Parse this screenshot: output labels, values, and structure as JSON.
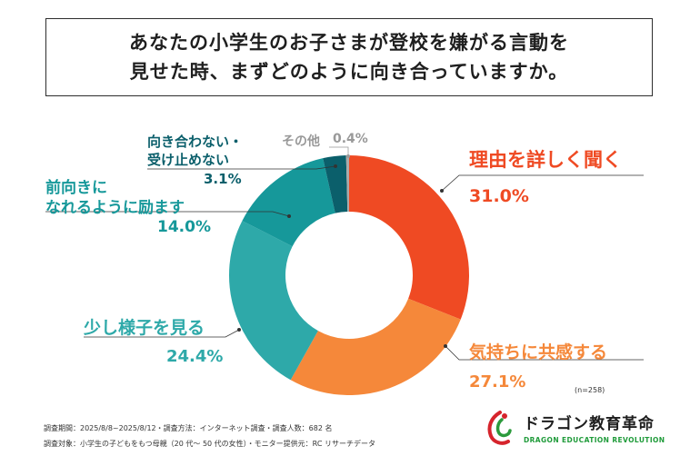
{
  "title": {
    "line1": "あなたの小学生のお子さまが登校を嫌がる言動を",
    "line2": "見せた時、まずどのように向き合っていますか。"
  },
  "chart_data": {
    "type": "pie",
    "donut": true,
    "slices": [
      {
        "label": "理由を詳しく聞く",
        "value": 31.0,
        "value_label": "31.0%",
        "color": "#ef4a23"
      },
      {
        "label": "気持ちに共感する",
        "value": 27.1,
        "value_label": "27.1%",
        "color": "#f5883a"
      },
      {
        "label": "少し様子を見る",
        "value": 24.4,
        "value_label": "24.4%",
        "color": "#2ea9a9"
      },
      {
        "label": "前向きに なれるように励ます",
        "value": 14.0,
        "value_label": "14.0%",
        "color": "#16989a"
      },
      {
        "label": "向き合わない・ 受け止めない",
        "value": 3.1,
        "value_label": "3.1%",
        "color": "#0b5f6b"
      },
      {
        "label": "その他",
        "value": 0.4,
        "value_label": "0.4%",
        "color": "#aaaaaa"
      }
    ],
    "sample_note": "(n=258)"
  },
  "labels": {
    "riyuu": {
      "name": "理由を詳しく聞く",
      "value": "31.0%"
    },
    "kimochi": {
      "name": "気持ちに共感する",
      "value": "27.1%"
    },
    "sukoshi": {
      "name": "少し様子を見る",
      "value": "24.4%"
    },
    "maemuki": {
      "line1": "前向きに",
      "line2": "なれるように励ます",
      "value": "14.0%"
    },
    "mukiawanai": {
      "line1": "向き合わない・",
      "line2": "受け止めない",
      "value": "3.1%"
    },
    "sonota": {
      "name": "その他",
      "value": "0.4%"
    }
  },
  "footer": {
    "line1": "調査期間：2025/8/8~2025/8/12・調査方法：インターネット調査・調査人数：682 名",
    "line2": "調査対象：小学生の子どもをもつ母親（20 代〜 50 代の女性）・モニター提供元：RC リサーチデータ"
  },
  "logo": {
    "name": "ドラゴン教育革命",
    "sub": "DRAGON EDUCATION REVOLUTION"
  }
}
